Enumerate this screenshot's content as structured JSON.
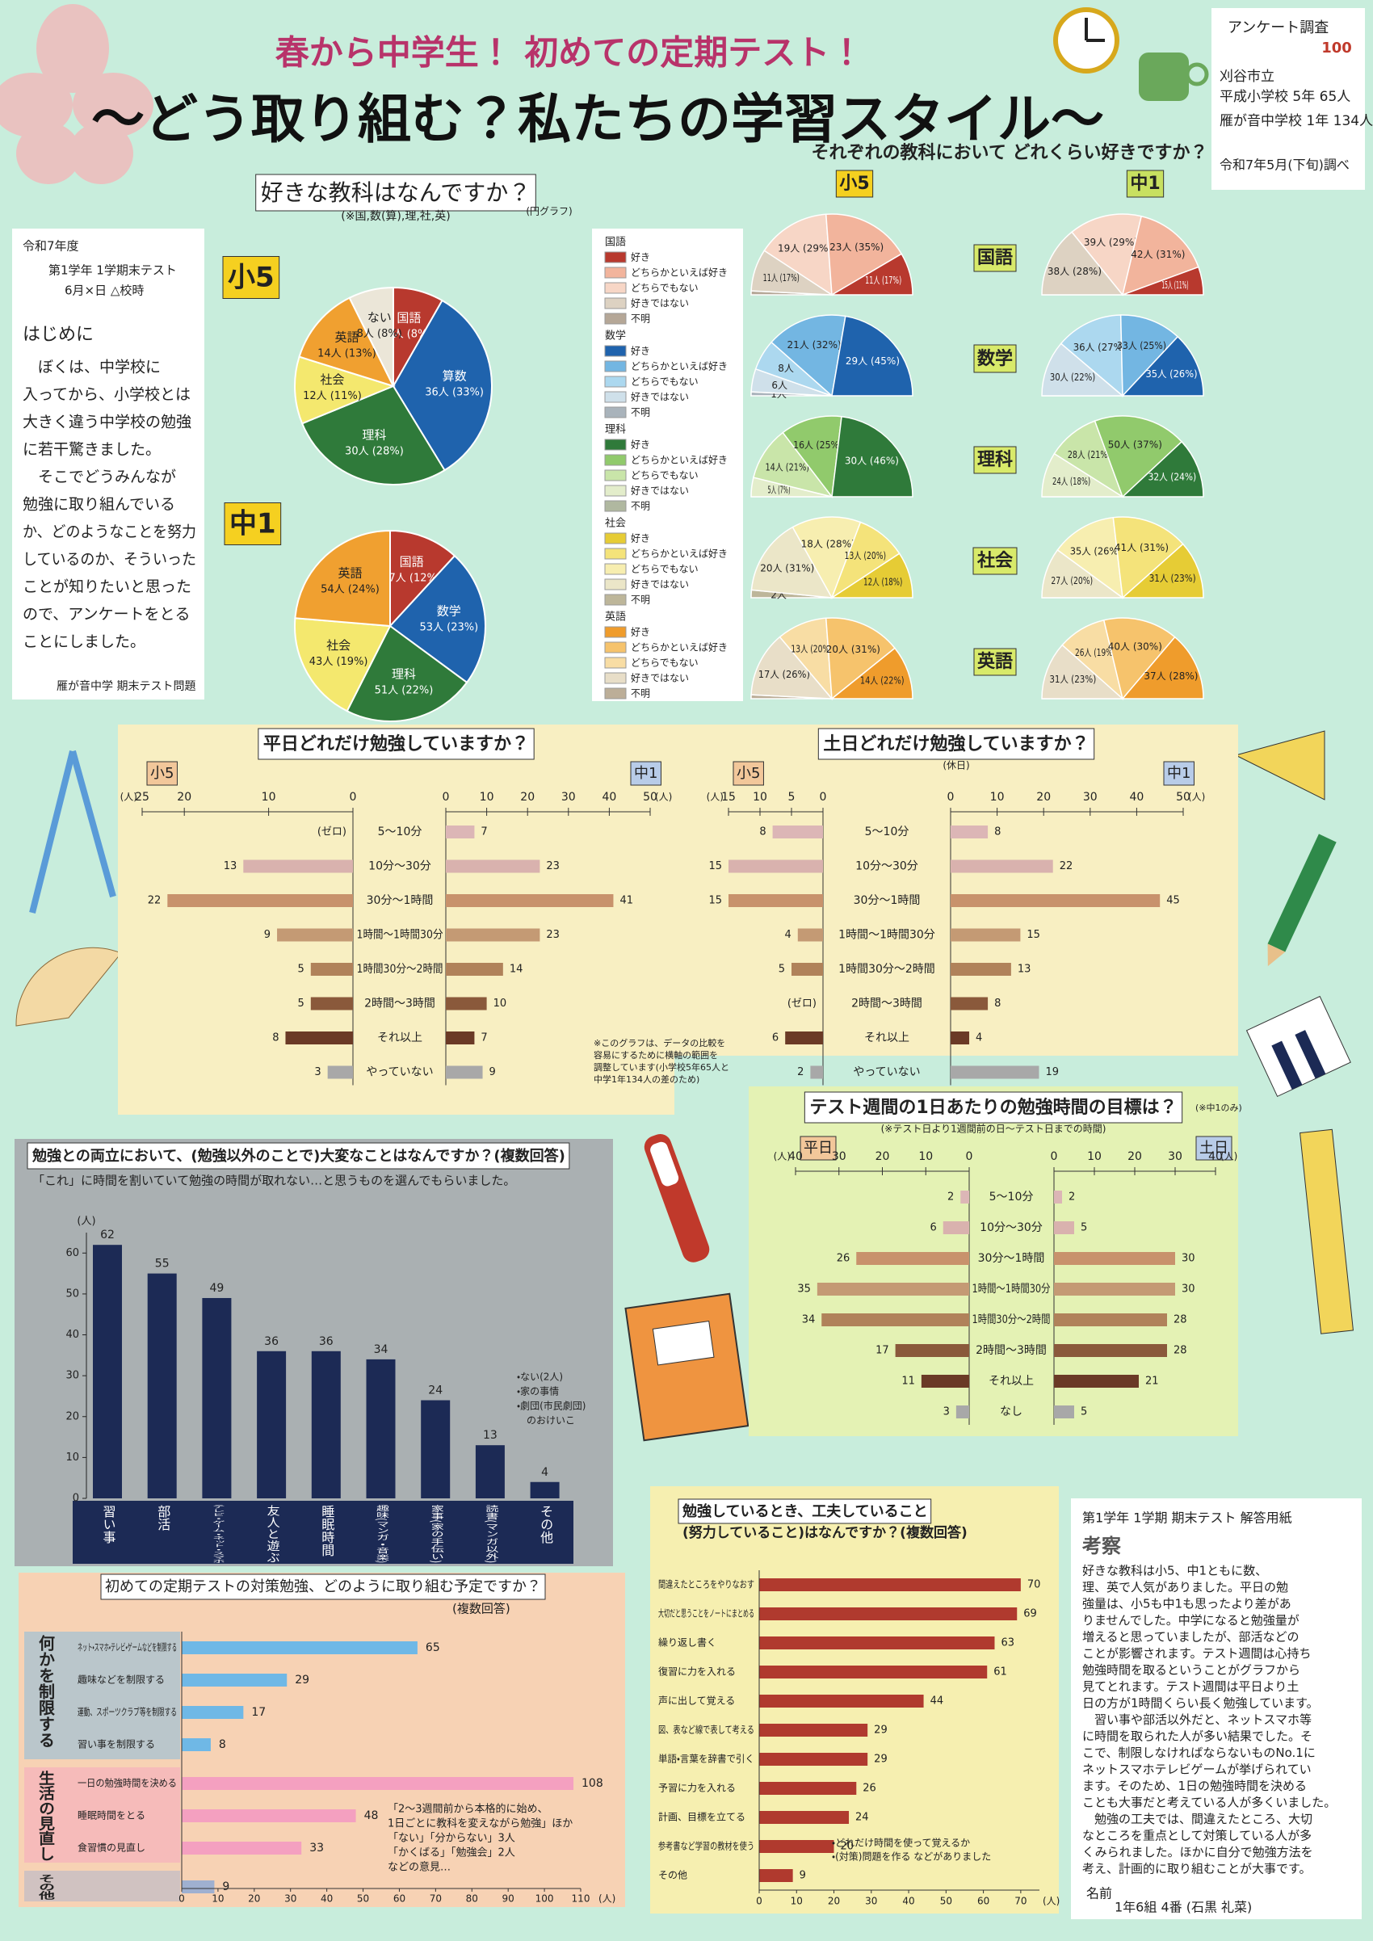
{
  "header": {
    "subtitle": "春から中学生！ 初めての定期テスト！",
    "title": "〜どう取り組む？私たちの学習スタイル〜"
  },
  "survey": {
    "lines": [
      "アンケート調査",
      "刈谷市立",
      "平成小学校 5年 65人",
      "雁が音中学校 1年 134人",
      "令和7年5月(下旬)調べ"
    ],
    "stamp": "100"
  },
  "intro": {
    "header": [
      "令和7年度",
      "第1学年 1学期末テスト",
      "6月×日 △校時"
    ],
    "heading": "はじめに",
    "body": [
      "　ぼくは、中学校に",
      "入ってから、小学校とは",
      "大きく違う中学校の勉強",
      "に若干驚きました。",
      "　そこでどうみんなが",
      "勉強に取り組んでいる",
      "か、どのようなことを努力",
      "しているのか、そういった",
      "ことが知りたいと思った",
      "ので、アンケートをとる",
      "ことにしました。"
    ],
    "footer": "雁が音中学 期末テスト問題"
  },
  "conclusion": {
    "header": "第1学年 1学期 期末テスト 解答用紙",
    "heading": "考察",
    "body": [
      "好きな教科は小5、中1ともに数、",
      "理、英で人気がありました。平日の勉",
      "強量は、小5も中1も思ったより差があ",
      "りませんでした。中学になると勉強量が",
      "増えると思っていましたが、部活などの",
      "ことが影響されます。テスト週間は心持ち",
      "勉強時間を取るということがグラフから",
      "見てとれます。テスト週間は平日より土",
      "日の方が1時間くらい長く勉強しています。",
      "　習い事や部活以外だと、ネットスマホ等",
      "に時間を取られた人が多い結果でした。そ",
      "こで、制限しなければならないものNo.1に",
      "ネットスマホテレビゲームが挙げられてい",
      "ます。そのため、1日の勉強時間を決める",
      "ことも大事だと考えている人が多くいました。",
      "　勉強の工夫では、間違えたところ、大切",
      "なところを重点として対策している人が多",
      "くみられました。ほかに自分で勉強方法を",
      "考え、計画的に取り組むことが大事です。"
    ],
    "name_label": "名前",
    "name": "1年6組 4番 (石黒 礼菜)"
  },
  "chart_data": [
    {
      "type": "pie",
      "title": "好きな教科はなんですか？",
      "subtitle": "(※国,数(算),理,社,英)",
      "note": "(円グラフ)",
      "label": "小5",
      "categories": [
        "国語",
        "算数",
        "理科",
        "社会",
        "英語",
        "ない"
      ],
      "values": [
        9,
        36,
        30,
        12,
        14,
        8
      ],
      "value_labels": [
        "9人 (8%)",
        "36人 (33%)",
        "30人 (28%)",
        "12人 (11%)",
        "14人 (13%)",
        "8人 (8%)"
      ],
      "colors": [
        "#b8392e",
        "#1f63ad",
        "#2f7a3a",
        "#f4e86e",
        "#f0a030",
        "#ebe6d8"
      ]
    },
    {
      "type": "pie",
      "label": "中1",
      "categories": [
        "国語",
        "数学",
        "理科",
        "社会",
        "英語"
      ],
      "values": [
        27,
        53,
        51,
        43,
        54
      ],
      "value_labels": [
        "27人 (12%)",
        "53人 (23%)",
        "51人 (22%)",
        "43人 (19%)",
        "54人 (24%)"
      ],
      "colors": [
        "#b8392e",
        "#1f63ad",
        "#2f7a3a",
        "#f4e86e",
        "#f0a030"
      ]
    },
    {
      "type": "half-pie",
      "title": "それぞれの教科において どれくらい好きですか？",
      "panels": [
        "小5",
        "中1"
      ],
      "categories": [
        "好き",
        "どちらかといえば好き",
        "どちらでもない",
        "好きではない",
        "不明"
      ],
      "subjects": [
        {
          "name": "国語",
          "colors": [
            "#b8392e",
            "#f2b49c",
            "#f7d6c6",
            "#ddd2c2",
            "#b5a797"
          ],
          "values": [
            [
              11,
              23,
              19,
              11,
              1
            ],
            [
              15,
              42,
              39,
              38,
              0
            ]
          ],
          "value_labels": [
            [
              "11人 (17%)",
              "23人 (35%)",
              "19人 (29%)",
              "11人 (17%)",
              null
            ],
            [
              "15人 (11%)",
              "42人 (31%)",
              "39人 (29%)",
              "38人 (28%)",
              null
            ]
          ]
        },
        {
          "name": "数学",
          "colors": [
            "#1f63ad",
            "#73b6e2",
            "#acd8ef",
            "#cfe0ea",
            "#a9b3bb"
          ],
          "values": [
            [
              29,
              21,
              8,
              6,
              1
            ],
            [
              35,
              33,
              36,
              30,
              0
            ]
          ],
          "value_labels": [
            [
              "29人 (45%)",
              "21人 (32%)",
              "8人",
              "6人",
              "1人"
            ],
            [
              "35人 (26%)",
              "33人 (25%)",
              "36人 (27%)",
              "30人 (22%)",
              null
            ]
          ]
        },
        {
          "name": "理科",
          "colors": [
            "#2f7a3a",
            "#91ca6c",
            "#c9e5a9",
            "#e3edcb",
            "#b0b8a0"
          ],
          "values": [
            [
              30,
              16,
              14,
              5,
              0
            ],
            [
              32,
              50,
              28,
              24,
              0
            ]
          ],
          "value_labels": [
            [
              "30人 (46%)",
              "16人 (25%)",
              "14人 (21%)",
              "5人 (7%)",
              null
            ],
            [
              "32人 (24%)",
              "50人 (37%)",
              "28人 (21%)",
              "24人 (18%)",
              null
            ]
          ]
        },
        {
          "name": "社会",
          "colors": [
            "#e6cc35",
            "#f4e37a",
            "#f7eeb0",
            "#ebe6c8",
            "#bdb69a"
          ],
          "values": [
            [
              12,
              13,
              18,
              20,
              2
            ],
            [
              31,
              41,
              35,
              27,
              0
            ]
          ],
          "value_labels": [
            [
              "12人 (18%)",
              "13人 (20%)",
              "18人 (28%)",
              "20人 (31%)",
              "2人"
            ],
            [
              "31人 (23%)",
              "41人 (31%)",
              "35人 (26%)",
              "27人 (20%)",
              null
            ]
          ]
        },
        {
          "name": "英語",
          "colors": [
            "#ef9c2c",
            "#f6c36c",
            "#f8dda4",
            "#e8dec8",
            "#bcae98"
          ],
          "values": [
            [
              14,
              20,
              13,
              17,
              1
            ],
            [
              37,
              40,
              26,
              31,
              0
            ]
          ],
          "value_labels": [
            [
              "14人 (22%)",
              "20人 (31%)",
              "13人 (20%)",
              "17人 (26%)",
              null
            ],
            [
              "37人 (28%)",
              "40人 (30%)",
              "26人 (19%)",
              "31人 (23%)",
              null
            ]
          ]
        }
      ]
    },
    {
      "type": "butterfly",
      "title": "平日どれだけ勉強していますか？",
      "unit": "(人)",
      "categories": [
        "5〜10分",
        "10分〜30分",
        "30分〜1時間",
        "1時間〜1時間30分",
        "1時間30分〜2時間",
        "2時間〜3時間",
        "それ以上",
        "やっていない"
      ],
      "colors": [
        "#dcb6b6",
        "#d9b2ae",
        "#c8926c",
        "#c49a74",
        "#b0825a",
        "#8a593b",
        "#6a3a26",
        "#a8a8a8"
      ],
      "series": [
        {
          "name": "小5",
          "values": [
            0,
            13,
            22,
            9,
            5,
            5,
            8,
            3
          ],
          "value_labels": [
            "(ゼロ)",
            "13",
            "22",
            "9",
            "5",
            "5",
            "8",
            "3"
          ],
          "xlim": [
            0,
            25
          ],
          "xticks": [
            25,
            20,
            10,
            0
          ]
        },
        {
          "name": "中1",
          "values": [
            7,
            23,
            41,
            23,
            14,
            10,
            7,
            9
          ],
          "xlim": [
            0,
            50
          ],
          "xticks": [
            0,
            10,
            20,
            30,
            40,
            50
          ]
        }
      ],
      "note": [
        "※このグラフは、データの比較を",
        "容易にするために横軸の範囲を",
        "調整しています(小学校5年65人と",
        "中学1年134人の差のため)"
      ]
    },
    {
      "type": "butterfly",
      "title": "土日どれだけ勉強していますか？",
      "subtitle": "(休日)",
      "unit": "(人)",
      "categories": [
        "5〜10分",
        "10分〜30分",
        "30分〜1時間",
        "1時間〜1時間30分",
        "1時間30分〜2時間",
        "2時間〜3時間",
        "それ以上",
        "やっていない"
      ],
      "colors": [
        "#dcb6b6",
        "#d9b2ae",
        "#c8926c",
        "#c49a74",
        "#b0825a",
        "#8a593b",
        "#6a3a26",
        "#a8a8a8"
      ],
      "series": [
        {
          "name": "小5",
          "values": [
            8,
            15,
            15,
            4,
            5,
            0,
            6,
            2
          ],
          "value_labels": [
            "8",
            "15",
            "15",
            "4",
            "5",
            "(ゼロ)",
            "6",
            "2"
          ],
          "xlim": [
            0,
            15
          ],
          "xticks": [
            15,
            10,
            5,
            0
          ]
        },
        {
          "name": "中1",
          "values": [
            8,
            22,
            45,
            15,
            13,
            8,
            4,
            19
          ],
          "xlim": [
            0,
            50
          ],
          "xticks": [
            0,
            10,
            20,
            30,
            40,
            50
          ]
        }
      ]
    },
    {
      "type": "butterfly",
      "title": "テスト週間の1日あたりの勉強時間の目標は？",
      "note": [
        "(※中1のみ)"
      ],
      "subtitle": "(※テスト日より1週間前の日〜テスト日までの時間)",
      "unit": "(人)",
      "categories": [
        "5〜10分",
        "10分〜30分",
        "30分〜1時間",
        "1時間〜1時間30分",
        "1時間30分〜2時間",
        "2時間〜3時間",
        "それ以上",
        "なし"
      ],
      "colors": [
        "#dcb6b6",
        "#d9b2ae",
        "#c8926c",
        "#c49a74",
        "#b0825a",
        "#8a593b",
        "#6a3a26",
        "#a8a8a8"
      ],
      "series": [
        {
          "name": "平日",
          "values": [
            2,
            6,
            26,
            35,
            34,
            17,
            11,
            3
          ],
          "xlim": [
            0,
            40
          ],
          "xticks": [
            40,
            30,
            20,
            10,
            0
          ]
        },
        {
          "name": "土日",
          "values": [
            2,
            5,
            30,
            30,
            28,
            28,
            21,
            5
          ],
          "xlim": [
            0,
            40
          ],
          "xticks": [
            0,
            10,
            20,
            30,
            40
          ]
        }
      ]
    },
    {
      "type": "bar",
      "title": "勉強との両立において、(勉強以外のことで)大変なことはなんですか？(複数回答)",
      "subtitle": "「これ」に時間を割いていて勉強の時間が取れない…と思うものを選んでもらいました。",
      "unit": "(人)",
      "categories": [
        "習い事",
        "部活",
        "テレビ・ゲーム・ネット・スマホ",
        "友人と遊ぶ",
        "睡眠時間",
        "趣味(マンガ・音楽)",
        "家事(家の手伝い)",
        "読書(マンガ以外)",
        "その他"
      ],
      "values": [
        62,
        55,
        49,
        36,
        36,
        34,
        24,
        13,
        4
      ],
      "color": "#1c2a55",
      "ylim": [
        0,
        65
      ],
      "yticks": [
        0,
        10,
        20,
        30,
        40,
        50,
        60
      ],
      "annotation": [
        "・ない(2人)",
        "・家の事情",
        "・劇団(市民劇団)",
        "　のおけいこ"
      ]
    },
    {
      "type": "hbar-grouped",
      "title": "初めての定期テストの対策勉強、どのように取り組む予定ですか？",
      "subtitle": "(複数回答)",
      "unit": "(人)",
      "xlim": [
        0,
        110
      ],
      "xticks": [
        0,
        10,
        20,
        30,
        40,
        50,
        60,
        70,
        80,
        90,
        100,
        110
      ],
      "groups": [
        {
          "name": "何かを制限する",
          "color": "#6fb8e6",
          "categories": [
            "ネット・スマホ・テレビ・ゲームなどを制限する",
            "趣味などを制限する",
            "運動、スポーツクラブ等を制限する",
            "習い事を制限する"
          ],
          "values": [
            65,
            29,
            17,
            8
          ]
        },
        {
          "name": "生活の見直し",
          "color": "#f4a0c0",
          "categories": [
            "一日の勉強時間を決める",
            "睡眠時間をとる",
            "食習慣の見直し"
          ],
          "values": [
            108,
            48,
            33
          ]
        },
        {
          "name": "その他",
          "color": "#9fb0d0",
          "categories": [
            null
          ],
          "values": [
            9
          ]
        }
      ],
      "annotation": [
        "「2〜3週間前から本格的に始め、",
        "1日ごとに教科を変えながら勉強」ほか",
        "「ない」「分からない」3人",
        "「かくばる」「勉強会」2人",
        "などの意見…"
      ]
    },
    {
      "type": "hbar",
      "title": "勉強しているとき、工夫していること",
      "subtitle": "(努力していること)はなんですか？(複数回答)",
      "unit": "(人)",
      "categories": [
        "間違えたところをやりなおす",
        "大切だと思うことをノートにまとめる",
        "繰り返し書く",
        "復習に力を入れる",
        "声に出して覚える",
        "図、表など線で表して考える",
        "単語・言葉を辞書で引く",
        "予習に力を入れる",
        "計画、目標を立てる",
        "参考書など学習の教材を使う",
        "その他"
      ],
      "values": [
        70,
        69,
        63,
        61,
        44,
        29,
        29,
        26,
        24,
        20,
        9
      ],
      "color": "#b03a2e",
      "xlim": [
        0,
        75
      ],
      "xticks": [
        0,
        10,
        20,
        30,
        40,
        50,
        60,
        70
      ],
      "annotation": [
        "・どれだけ時間を使って覚えるか",
        "・(対策)問題を作る などがありました"
      ]
    }
  ]
}
